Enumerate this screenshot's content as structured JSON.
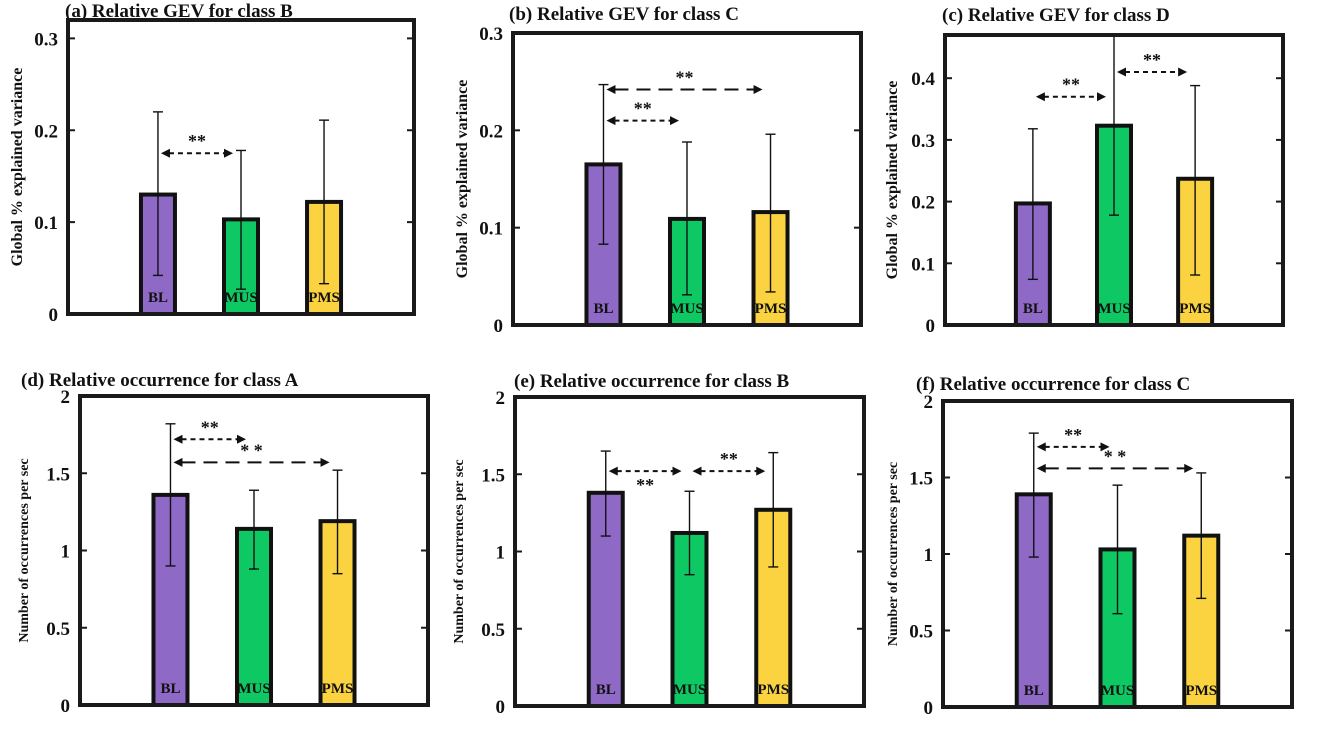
{
  "chart_data": [
    {
      "type": "bar",
      "panel": "(a)",
      "title": "(a) Relative GEV for class B",
      "ylabel": "Global % explained variance",
      "categories": [
        "BL",
        "MUS",
        "PMS"
      ],
      "values": [
        0.13,
        0.103,
        0.122
      ],
      "error_bars": [
        [
          0.042,
          0.22
        ],
        [
          0.027,
          0.178
        ],
        [
          0.033,
          0.211
        ]
      ],
      "ylim": [
        0,
        0.32
      ],
      "yticks": [
        0,
        0.1,
        0.2,
        0.3
      ],
      "ytick_labels": [
        "0",
        "0.1",
        "0.2",
        "0.3"
      ],
      "significance": [
        {
          "from": "BL",
          "to": "MUS",
          "label": "**",
          "style": "short-dash"
        }
      ]
    },
    {
      "type": "bar",
      "panel": "(b)",
      "title": "(b) Relative GEV for class C",
      "ylabel": "Global % explained variance",
      "categories": [
        "BL",
        "MUS",
        "PMS"
      ],
      "values": [
        0.165,
        0.109,
        0.116
      ],
      "error_bars": [
        [
          0.083,
          0.247
        ],
        [
          0.031,
          0.188
        ],
        [
          0.034,
          0.196
        ]
      ],
      "ylim": [
        0,
        0.3
      ],
      "yticks": [
        0,
        0.1,
        0.2,
        0.3
      ],
      "ytick_labels": [
        "0",
        "0.1",
        "0.2",
        "0.3"
      ],
      "significance": [
        {
          "from": "BL",
          "to": "MUS",
          "label": "**",
          "style": "short-dash"
        },
        {
          "from": "BL",
          "to": "PMS",
          "label": "**",
          "style": "long-dash"
        }
      ]
    },
    {
      "type": "bar",
      "panel": "(c)",
      "title": "(c) Relative GEV for class D",
      "ylabel": "Global % explained variance",
      "categories": [
        "BL",
        "MUS",
        "PMS"
      ],
      "values": [
        0.197,
        0.323,
        0.237
      ],
      "error_bars": [
        [
          0.074,
          0.318
        ],
        [
          0.178,
          0.47
        ],
        [
          0.081,
          0.388
        ]
      ],
      "ylim": [
        0,
        0.47
      ],
      "yticks": [
        0,
        0.1,
        0.2,
        0.3,
        0.4
      ],
      "ytick_labels": [
        "0",
        "0.1",
        "0.2",
        "0.3",
        "0.4"
      ],
      "significance": [
        {
          "from": "BL",
          "to": "MUS",
          "label": "**",
          "style": "short-dash"
        },
        {
          "from": "MUS",
          "to": "PMS",
          "label": "**",
          "style": "short-dash"
        }
      ]
    },
    {
      "type": "bar",
      "panel": "(d)",
      "title": "(d) Relative occurrence for  class A",
      "ylabel": "Number of occurrences per sec",
      "categories": [
        "BL",
        "MUS",
        "PMS"
      ],
      "values": [
        1.36,
        1.14,
        1.19
      ],
      "error_bars": [
        [
          0.9,
          1.82
        ],
        [
          0.88,
          1.39
        ],
        [
          0.85,
          1.52
        ]
      ],
      "ylim": [
        0,
        2
      ],
      "yticks": [
        0,
        0.5,
        1,
        1.5,
        2
      ],
      "ytick_labels": [
        "0",
        "0.5",
        "1",
        "1.5",
        "2"
      ],
      "significance": [
        {
          "from": "BL",
          "to": "MUS",
          "label": "**",
          "style": "short-dash"
        },
        {
          "from": "BL",
          "to": "PMS",
          "label": "* *",
          "style": "long-dash"
        }
      ]
    },
    {
      "type": "bar",
      "panel": "(e)",
      "title": "(e) Relative occurrence for  class B",
      "ylabel": "Number of occurrences per sec",
      "categories": [
        "BL",
        "MUS",
        "PMS"
      ],
      "values": [
        1.38,
        1.12,
        1.27
      ],
      "error_bars": [
        [
          1.1,
          1.65
        ],
        [
          0.85,
          1.39
        ],
        [
          0.9,
          1.64
        ]
      ],
      "ylim": [
        0,
        2
      ],
      "yticks": [
        0,
        0.5,
        1,
        1.5,
        2
      ],
      "ytick_labels": [
        "0",
        "0.5",
        "1",
        "1.5",
        "2"
      ],
      "significance": [
        {
          "from": "BL",
          "to": "MUS",
          "label": "**",
          "style": "short-dash",
          "label_below": true
        },
        {
          "from": "MUS",
          "to": "PMS",
          "label": "**",
          "style": "short-dash"
        }
      ]
    },
    {
      "type": "bar",
      "panel": "(f)",
      "title": "(f) Relative occurrence for  class C",
      "ylabel": "Number of occurrences per sec",
      "categories": [
        "BL",
        "MUS",
        "PMS"
      ],
      "values": [
        1.39,
        1.03,
        1.12
      ],
      "error_bars": [
        [
          0.98,
          1.79
        ],
        [
          0.61,
          1.45
        ],
        [
          0.71,
          1.53
        ]
      ],
      "ylim": [
        0,
        2
      ],
      "yticks": [
        0,
        0.5,
        1,
        1.5,
        2
      ],
      "ytick_labels": [
        "0",
        "0.5",
        "1",
        "1.5",
        "2"
      ],
      "significance": [
        {
          "from": "BL",
          "to": "MUS",
          "label": "**",
          "style": "short-dash"
        },
        {
          "from": "BL",
          "to": "PMS",
          "label": "* *",
          "style": "long-dash"
        }
      ]
    }
  ],
  "colors": {
    "BL": "#8e69c6",
    "MUS": "#0ec963",
    "PMS": "#fbd341",
    "bar_edge": "#111111",
    "axis": "#1a1a1a"
  }
}
